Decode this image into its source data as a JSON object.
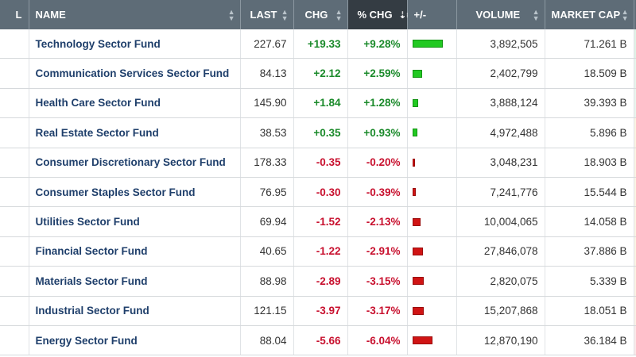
{
  "columns": [
    {
      "key": "first",
      "label": "L"
    },
    {
      "key": "name",
      "label": "NAME"
    },
    {
      "key": "last",
      "label": "LAST"
    },
    {
      "key": "chg",
      "label": "CHG"
    },
    {
      "key": "pct",
      "label": "% CHG"
    },
    {
      "key": "bar",
      "label": "+/-"
    },
    {
      "key": "volume",
      "label": "VOLUME"
    },
    {
      "key": "mcap",
      "label": "MARKET CAP"
    },
    {
      "key": "heat",
      "label": ""
    }
  ],
  "sorted_icon": "sort-descending-icon",
  "colors": {
    "header_bg": "#5e6c77",
    "sorted_header_bg": "#343c43",
    "positive": "#1a8a2a",
    "negative": "#c8102e",
    "bar_up": "#22c922",
    "bar_down": "#d01414",
    "name_text": "#1f3f6b"
  },
  "rows": [
    {
      "name": "Technology Sector Fund",
      "last": "227.67",
      "chg": "+19.33",
      "pct": "+9.28%",
      "pct_value": 9.28,
      "volume": "3,892,505",
      "mcap": "71.261 B",
      "heat": "#dff3e6"
    },
    {
      "name": "Communication Services Sector Fund",
      "last": "84.13",
      "chg": "+2.12",
      "pct": "+2.59%",
      "pct_value": 2.59,
      "volume": "2,402,799",
      "mcap": "18.509 B",
      "heat": "#e6f6ec"
    },
    {
      "name": "Health Care Sector Fund",
      "last": "145.90",
      "chg": "+1.84",
      "pct": "+1.28%",
      "pct_value": 1.28,
      "volume": "3,888,124",
      "mcap": "39.393 B",
      "heat": "#e9f6ee"
    },
    {
      "name": "Real Estate Sector Fund",
      "last": "38.53",
      "chg": "+0.35",
      "pct": "+0.93%",
      "pct_value": 0.93,
      "volume": "4,972,488",
      "mcap": "5.896 B",
      "heat": "#fbf4e2"
    },
    {
      "name": "Consumer Discretionary Sector Fund",
      "last": "178.33",
      "chg": "-0.35",
      "pct": "-0.20%",
      "pct_value": -0.2,
      "volume": "3,048,231",
      "mcap": "18.903 B",
      "heat": "#fbf5e4"
    },
    {
      "name": "Consumer Staples Sector Fund",
      "last": "76.95",
      "chg": "-0.30",
      "pct": "-0.39%",
      "pct_value": -0.39,
      "volume": "7,241,776",
      "mcap": "15.544 B",
      "heat": "#fbf5e4"
    },
    {
      "name": "Utilities Sector Fund",
      "last": "69.94",
      "chg": "-1.52",
      "pct": "-2.13%",
      "pct_value": -2.13,
      "volume": "10,004,065",
      "mcap": "14.058 B",
      "heat": "#fbf5e4"
    },
    {
      "name": "Financial Sector Fund",
      "last": "40.65",
      "chg": "-1.22",
      "pct": "-2.91%",
      "pct_value": -2.91,
      "volume": "27,846,078",
      "mcap": "37.886 B",
      "heat": "#fbf5e4"
    },
    {
      "name": "Materials Sector Fund",
      "last": "88.98",
      "chg": "-2.89",
      "pct": "-3.15%",
      "pct_value": -3.15,
      "volume": "2,820,075",
      "mcap": "5.339 B",
      "heat": "#fbf3e4"
    },
    {
      "name": "Industrial Sector Fund",
      "last": "121.15",
      "chg": "-3.97",
      "pct": "-3.17%",
      "pct_value": -3.17,
      "volume": "15,207,868",
      "mcap": "18.051 B",
      "heat": "#fbf1e6"
    },
    {
      "name": "Energy Sector Fund",
      "last": "88.04",
      "chg": "-5.66",
      "pct": "-6.04%",
      "pct_value": -6.04,
      "volume": "12,870,190",
      "mcap": "36.184 B",
      "heat": "#fbe9e9"
    }
  ]
}
